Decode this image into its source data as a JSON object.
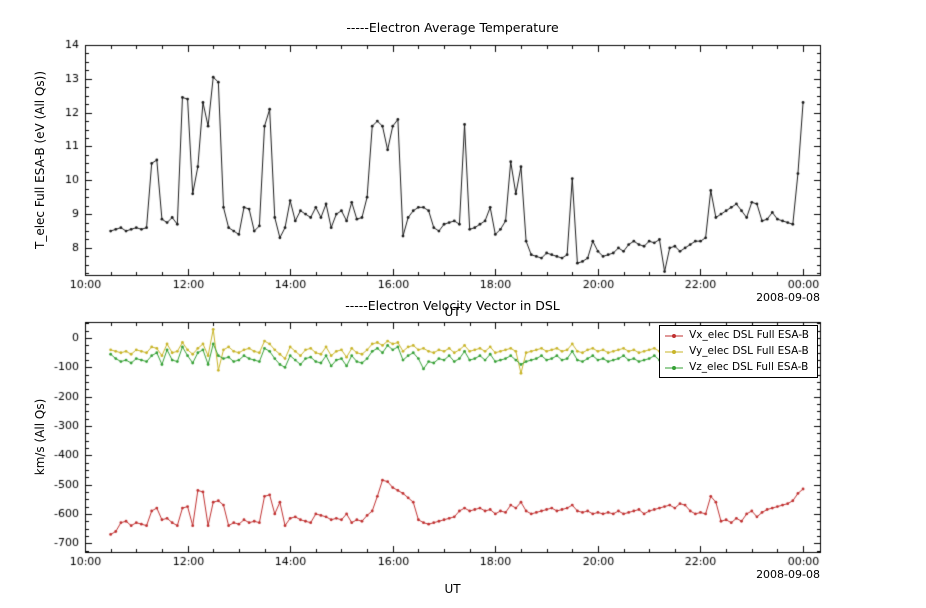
{
  "colors": {
    "frame": "#000000",
    "temperature": "#1a1a1a",
    "vx": "#c03030",
    "vy": "#c8b428",
    "vz": "#35a035",
    "background": "#ffffff"
  },
  "chart_data": {
    "x_hours": [
      10.5,
      10.6,
      10.7,
      10.8,
      10.9,
      11.0,
      11.1,
      11.2,
      11.3,
      11.4,
      11.5,
      11.6,
      11.7,
      11.8,
      11.9,
      12.0,
      12.1,
      12.2,
      12.3,
      12.4,
      12.5,
      12.6,
      12.7,
      12.8,
      12.9,
      13.0,
      13.1,
      13.2,
      13.3,
      13.4,
      13.5,
      13.6,
      13.7,
      13.8,
      13.9,
      14.0,
      14.1,
      14.2,
      14.3,
      14.4,
      14.5,
      14.6,
      14.7,
      14.8,
      14.9,
      15.0,
      15.1,
      15.2,
      15.3,
      15.4,
      15.5,
      15.6,
      15.7,
      15.8,
      15.9,
      16.0,
      16.1,
      16.2,
      16.3,
      16.4,
      16.5,
      16.6,
      16.7,
      16.8,
      16.9,
      17.0,
      17.1,
      17.2,
      17.3,
      17.4,
      17.5,
      17.6,
      17.7,
      17.8,
      17.9,
      18.0,
      18.1,
      18.2,
      18.3,
      18.4,
      18.5,
      18.6,
      18.7,
      18.8,
      18.9,
      19.0,
      19.1,
      19.2,
      19.3,
      19.4,
      19.5,
      19.6,
      19.7,
      19.8,
      19.9,
      20.0,
      20.1,
      20.2,
      20.3,
      20.4,
      20.5,
      20.6,
      20.7,
      20.8,
      20.9,
      21.0,
      21.1,
      21.2,
      21.3,
      21.4,
      21.5,
      21.6,
      21.7,
      21.8,
      21.9,
      22.0,
      22.1,
      22.2,
      22.3,
      22.4,
      22.5,
      22.6,
      22.7,
      22.8,
      22.9,
      23.0,
      23.1,
      23.2,
      23.3,
      23.4,
      23.5,
      23.6,
      23.7,
      23.8,
      23.9,
      24.0
    ],
    "panels": [
      {
        "type": "line",
        "title": "-----Electron Average Temperature",
        "ylabel": "T_elec Full ESA-B (eV (All Qs))",
        "xlabel": "UT",
        "date_label": "2008-09-08",
        "xlim": [
          10,
          24.33
        ],
        "ylim": [
          7.2,
          14.0
        ],
        "yticks": [
          8,
          9,
          10,
          11,
          12,
          13,
          14
        ],
        "xticks": [
          10,
          12,
          14,
          16,
          18,
          20,
          22,
          24
        ],
        "xtick_labels": [
          "10:00",
          "12:00",
          "14:00",
          "16:00",
          "18:00",
          "20:00",
          "22:00",
          "00:00"
        ],
        "grid": false,
        "series": [
          {
            "name": "T_elec Full ESA-B",
            "color": "#1a1a1a",
            "values": [
              8.5,
              8.55,
              8.6,
              8.5,
              8.55,
              8.6,
              8.55,
              8.6,
              10.5,
              10.6,
              8.85,
              8.75,
              8.9,
              8.7,
              12.45,
              12.4,
              9.6,
              10.4,
              12.3,
              11.6,
              13.05,
              12.9,
              9.2,
              8.6,
              8.5,
              8.4,
              9.2,
              9.15,
              8.5,
              8.65,
              11.6,
              12.1,
              8.9,
              8.3,
              8.6,
              9.4,
              8.8,
              9.1,
              9.0,
              8.9,
              9.2,
              8.9,
              9.3,
              8.6,
              9.0,
              9.1,
              8.8,
              9.35,
              8.85,
              8.9,
              9.5,
              11.6,
              11.75,
              11.6,
              10.9,
              11.6,
              11.8,
              8.35,
              8.9,
              9.1,
              9.2,
              9.2,
              9.1,
              8.6,
              8.5,
              8.7,
              8.75,
              8.8,
              8.7,
              11.65,
              8.55,
              8.6,
              8.7,
              8.8,
              9.2,
              8.4,
              8.55,
              8.8,
              10.55,
              9.6,
              10.4,
              8.2,
              7.8,
              7.75,
              7.7,
              7.85,
              7.8,
              7.75,
              7.7,
              7.8,
              10.05,
              7.55,
              7.6,
              7.7,
              8.2,
              7.9,
              7.75,
              7.8,
              7.85,
              8.0,
              7.9,
              8.1,
              8.2,
              8.1,
              8.05,
              8.2,
              8.15,
              8.25,
              7.3,
              8.0,
              8.05,
              7.9,
              8.0,
              8.1,
              8.2,
              8.2,
              8.3,
              9.7,
              8.9,
              9.0,
              9.1,
              9.2,
              9.3,
              9.1,
              8.9,
              9.35,
              9.3,
              8.8,
              8.85,
              9.05,
              8.85,
              8.8,
              8.75,
              8.7,
              10.2,
              12.3
            ]
          }
        ]
      },
      {
        "type": "line",
        "title": "-----Electron Velocity Vector in DSL",
        "ylabel": "km/s (All Qs)",
        "xlabel": "UT",
        "date_label": "2008-09-08",
        "xlim": [
          10,
          24.33
        ],
        "ylim": [
          -730,
          55
        ],
        "yticks": [
          0,
          -100,
          -200,
          -300,
          -400,
          -500,
          -600,
          -700
        ],
        "xticks": [
          10,
          12,
          14,
          16,
          18,
          20,
          22,
          24
        ],
        "xtick_labels": [
          "10:00",
          "12:00",
          "14:00",
          "16:00",
          "18:00",
          "20:00",
          "22:00",
          "00:00"
        ],
        "grid": false,
        "legend_position": "top-right",
        "series": [
          {
            "name": "Vx_elec DSL Full ESA-B",
            "color": "#c03030",
            "values": [
              -670,
              -660,
              -630,
              -625,
              -640,
              -630,
              -635,
              -640,
              -590,
              -580,
              -620,
              -615,
              -630,
              -640,
              -580,
              -575,
              -640,
              -520,
              -525,
              -640,
              -560,
              -555,
              -570,
              -640,
              -630,
              -635,
              -620,
              -630,
              -625,
              -630,
              -540,
              -535,
              -600,
              -560,
              -640,
              -615,
              -610,
              -620,
              -625,
              -630,
              -600,
              -605,
              -610,
              -620,
              -615,
              -620,
              -600,
              -630,
              -620,
              -625,
              -605,
              -590,
              -540,
              -485,
              -490,
              -510,
              -520,
              -530,
              -545,
              -560,
              -620,
              -630,
              -635,
              -630,
              -625,
              -620,
              -615,
              -610,
              -590,
              -580,
              -590,
              -585,
              -580,
              -590,
              -585,
              -600,
              -590,
              -595,
              -570,
              -580,
              -560,
              -590,
              -600,
              -595,
              -590,
              -585,
              -580,
              -590,
              -585,
              -580,
              -570,
              -590,
              -595,
              -590,
              -600,
              -595,
              -600,
              -595,
              -600,
              -590,
              -600,
              -595,
              -590,
              -585,
              -600,
              -590,
              -585,
              -580,
              -575,
              -570,
              -580,
              -565,
              -570,
              -590,
              -600,
              -595,
              -600,
              -540,
              -560,
              -625,
              -620,
              -630,
              -615,
              -625,
              -600,
              -590,
              -610,
              -595,
              -585,
              -580,
              -575,
              -570,
              -565,
              -555,
              -530,
              -515
            ]
          },
          {
            "name": "Vy_elec DSL Full ESA-B",
            "color": "#c8b428",
            "values": [
              -40,
              -45,
              -50,
              -45,
              -55,
              -40,
              -45,
              -50,
              -30,
              -35,
              -60,
              -20,
              -50,
              -45,
              -15,
              -40,
              -55,
              -35,
              -20,
              -60,
              30,
              -110,
              -40,
              -30,
              -45,
              -50,
              -40,
              -35,
              -45,
              -50,
              -10,
              -20,
              -40,
              -55,
              -70,
              -30,
              -45,
              -60,
              -40,
              -35,
              -50,
              -55,
              -30,
              -60,
              -45,
              -40,
              -65,
              -35,
              -50,
              -55,
              -40,
              -20,
              -15,
              -25,
              -10,
              -20,
              -15,
              -45,
              -30,
              -25,
              -40,
              -35,
              -45,
              -50,
              -40,
              -45,
              -35,
              -50,
              -40,
              -25,
              -45,
              -40,
              -35,
              -45,
              -30,
              -50,
              -45,
              -40,
              -35,
              -45,
              -120,
              -50,
              -45,
              -40,
              -35,
              -45,
              -40,
              -35,
              -45,
              -40,
              -20,
              -45,
              -50,
              -40,
              -35,
              -45,
              -40,
              -50,
              -45,
              -40,
              -35,
              -45,
              -40,
              -50,
              -45,
              -40,
              -35,
              -45,
              -50,
              -40,
              -45,
              -35,
              -40,
              -50,
              -45,
              -40,
              -45,
              -30,
              -40,
              -45,
              -50,
              -40,
              -35,
              -45,
              -40,
              -35,
              -45,
              -50,
              -40,
              -45,
              -35,
              -40,
              -45,
              -40,
              -35,
              -40
            ]
          },
          {
            "name": "Vz_elec DSL Full ESA-B",
            "color": "#35a035",
            "values": [
              -55,
              -70,
              -80,
              -75,
              -85,
              -70,
              -75,
              -80,
              -60,
              -50,
              -90,
              -40,
              -75,
              -80,
              -30,
              -60,
              -85,
              -50,
              -40,
              -90,
              -20,
              -60,
              -70,
              -65,
              -80,
              -75,
              -60,
              -70,
              -75,
              -80,
              -35,
              -45,
              -70,
              -90,
              -100,
              -60,
              -75,
              -90,
              -70,
              -65,
              -80,
              -85,
              -60,
              -95,
              -75,
              -70,
              -95,
              -60,
              -80,
              -85,
              -70,
              -45,
              -35,
              -50,
              -25,
              -40,
              -30,
              -75,
              -60,
              -50,
              -70,
              -105,
              -80,
              -85,
              -70,
              -75,
              -60,
              -80,
              -70,
              -45,
              -75,
              -70,
              -60,
              -75,
              -55,
              -80,
              -75,
              -70,
              -60,
              -75,
              -90,
              -80,
              -75,
              -70,
              -60,
              -75,
              -70,
              -60,
              -75,
              -70,
              -45,
              -75,
              -80,
              -70,
              -60,
              -75,
              -70,
              -80,
              -75,
              -70,
              -60,
              -75,
              -70,
              -80,
              -75,
              -70,
              -60,
              -75,
              -80,
              -70,
              -75,
              -60,
              -70,
              -80,
              -75,
              -70,
              -75,
              -55,
              -70,
              -75,
              -80,
              -70,
              -60,
              -75,
              -70,
              -60,
              -75,
              -80,
              -70,
              -75,
              -60,
              -70,
              -75,
              -70,
              -60,
              -50
            ]
          }
        ]
      }
    ]
  }
}
